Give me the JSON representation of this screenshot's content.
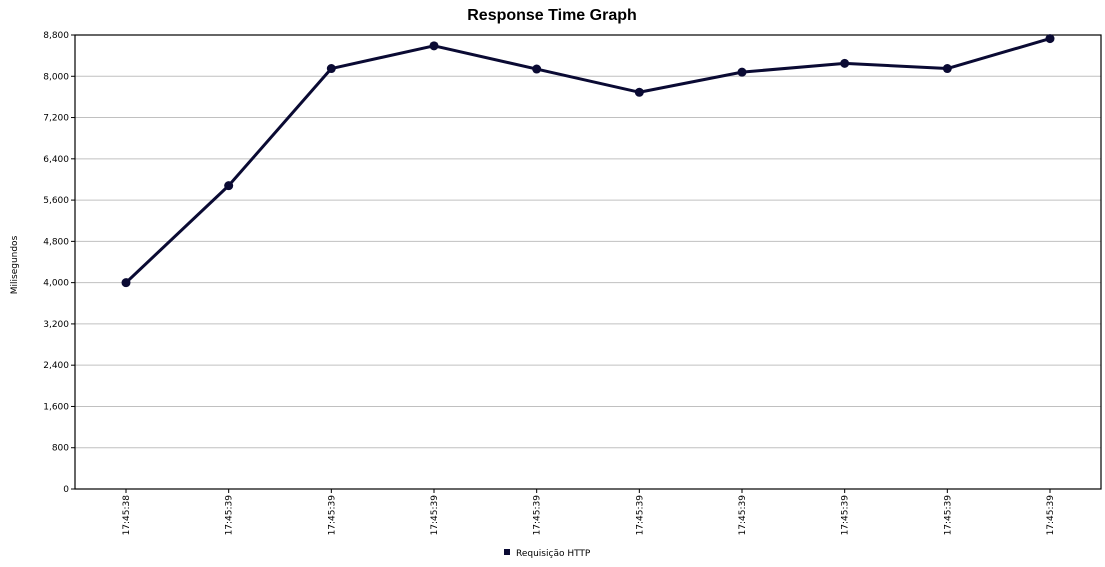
{
  "chart_data": {
    "type": "line",
    "title": "Response Time Graph",
    "xlabel": "",
    "ylabel": "Milisegundos",
    "ylim": [
      0,
      8800
    ],
    "yticks": [
      "0",
      "800",
      "1,600",
      "2,400",
      "3,200",
      "4,000",
      "4,800",
      "5,600",
      "6,400",
      "7,200",
      "8,000",
      "8,800"
    ],
    "ytick_values": [
      0,
      800,
      1600,
      2400,
      3200,
      4000,
      4800,
      5600,
      6400,
      7200,
      8000,
      8800
    ],
    "categories": [
      "17:45:38",
      "17:45:39",
      "17:45:39",
      "17:45:39",
      "17:45:39",
      "17:45:39",
      "17:45:39",
      "17:45:39",
      "17:45:39",
      "17:45:39"
    ],
    "grid": true,
    "legend_position": "bottom-center",
    "series": [
      {
        "name": "Requisição HTTP",
        "color": "#0a0a33",
        "values": [
          4000,
          5880,
          8150,
          8590,
          8140,
          7690,
          8080,
          8250,
          8150,
          8730
        ]
      }
    ]
  }
}
